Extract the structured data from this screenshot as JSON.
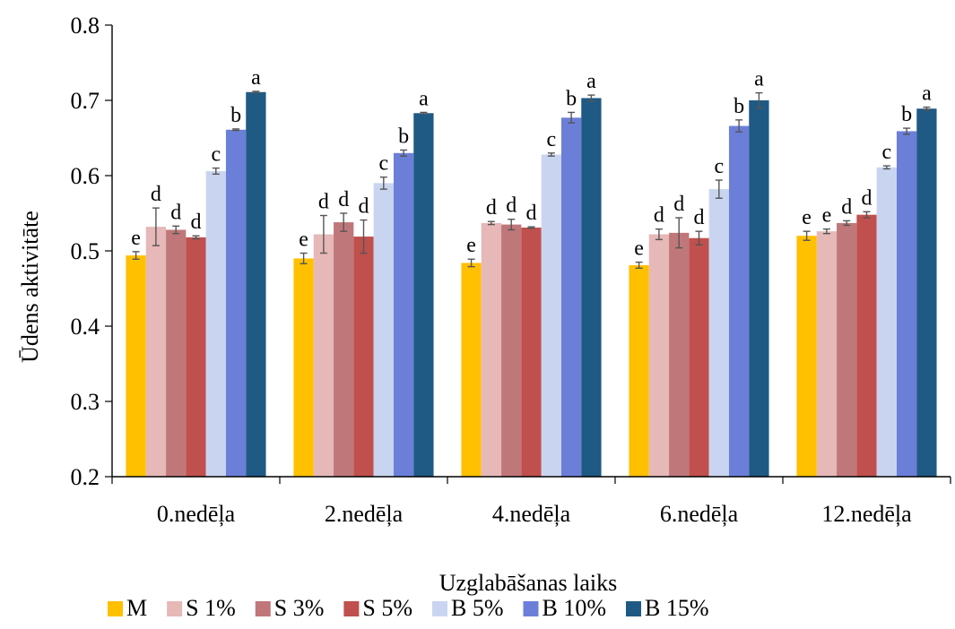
{
  "chart_data": {
    "type": "bar",
    "title": "",
    "xlabel": "Uzglabāšanas laiks",
    "ylabel": "Ūdens aktivitāte",
    "ylim": [
      0.2,
      0.8
    ],
    "yticks": [
      "0.2",
      "0.3",
      "0.4",
      "0.5",
      "0.6",
      "0.7",
      "0.8"
    ],
    "grid": false,
    "legend_position": "bottom",
    "categories": [
      "0.nedēļa",
      "2.nedēļa",
      "4.nedēļa",
      "6.nedēļa",
      "12.nedēļa"
    ],
    "series": [
      {
        "name": "M",
        "color": "#FFC000",
        "values": [
          0.494,
          0.49,
          0.484,
          0.481,
          0.52
        ],
        "errors": [
          0.005,
          0.007,
          0.005,
          0.004,
          0.006
        ],
        "letters": [
          "e",
          "e",
          "e",
          "e",
          "e"
        ]
      },
      {
        "name": "S 1%",
        "color": "#E6B8B7",
        "values": [
          0.532,
          0.522,
          0.537,
          0.522,
          0.526
        ],
        "errors": [
          0.025,
          0.025,
          0.002,
          0.007,
          0.003
        ],
        "letters": [
          "d",
          "d",
          "d",
          "d",
          "e"
        ]
      },
      {
        "name": "S 3%",
        "color": "#C0777A",
        "values": [
          0.528,
          0.538,
          0.535,
          0.524,
          0.537
        ],
        "errors": [
          0.005,
          0.012,
          0.007,
          0.02,
          0.003
        ],
        "letters": [
          "d",
          "d",
          "d",
          "d",
          "d"
        ]
      },
      {
        "name": "S 5%",
        "color": "#C0504D",
        "values": [
          0.518,
          0.519,
          0.531,
          0.517,
          0.548
        ],
        "errors": [
          0.002,
          0.022,
          0.001,
          0.009,
          0.004
        ],
        "letters": [
          "d",
          "d",
          "d",
          "d",
          "d"
        ]
      },
      {
        "name": "B 5%",
        "color": "#C9D5F0",
        "values": [
          0.606,
          0.59,
          0.628,
          0.582,
          0.611
        ],
        "errors": [
          0.004,
          0.008,
          0.002,
          0.012,
          0.002
        ],
        "letters": [
          "c",
          "c",
          "c",
          "c",
          "c"
        ]
      },
      {
        "name": "B 10%",
        "color": "#6C7FD8",
        "values": [
          0.661,
          0.63,
          0.677,
          0.666,
          0.659
        ],
        "errors": [
          0.001,
          0.004,
          0.007,
          0.008,
          0.004
        ],
        "letters": [
          "b",
          "b",
          "b",
          "b",
          "b"
        ]
      },
      {
        "name": "B 15%",
        "color": "#1F5A85",
        "values": [
          0.711,
          0.683,
          0.703,
          0.7,
          0.689
        ],
        "errors": [
          0.001,
          0.001,
          0.004,
          0.01,
          0.002
        ],
        "letters": [
          "a",
          "a",
          "a",
          "a",
          "a"
        ]
      }
    ]
  }
}
